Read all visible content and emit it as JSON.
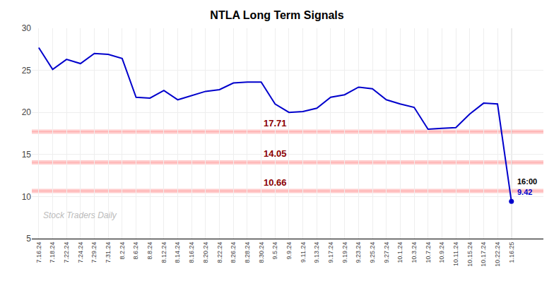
{
  "chart_data": {
    "type": "line",
    "title": "NTLA Long Term Signals",
    "categories": [
      "7.16.24",
      "7.18.24",
      "7.22.24",
      "7.24.24",
      "7.29.24",
      "7.31.24",
      "8.2.24",
      "8.6.24",
      "8.8.24",
      "8.12.24",
      "8.14.24",
      "8.16.24",
      "8.20.24",
      "8.22.24",
      "8.26.24",
      "8.28.24",
      "8.30.24",
      "9.5.24",
      "9.9.24",
      "9.11.24",
      "9.13.24",
      "9.17.24",
      "9.19.24",
      "9.23.24",
      "9.25.24",
      "9.27.24",
      "10.1.24",
      "10.3.24",
      "10.7.24",
      "10.9.24",
      "10.11.24",
      "10.15.24",
      "10.17.24",
      "10.22.24",
      "1.16.25"
    ],
    "values": [
      27.7,
      25.1,
      26.3,
      25.8,
      27.0,
      26.9,
      26.4,
      21.8,
      21.7,
      22.6,
      21.5,
      22.0,
      22.5,
      22.7,
      23.5,
      23.6,
      23.6,
      21.0,
      20.0,
      20.1,
      20.5,
      21.8,
      22.1,
      23.0,
      22.8,
      21.5,
      21.0,
      20.6,
      18.0,
      18.1,
      18.2,
      19.8,
      21.1,
      21.0,
      9.42
    ],
    "color": "#0000cc",
    "hlines": [
      {
        "y": 17.71,
        "label": "17.71",
        "color": "#8b0000"
      },
      {
        "y": 14.05,
        "label": "14.05",
        "color": "#8b0000"
      },
      {
        "y": 10.66,
        "label": "10.66",
        "color": "#8b0000"
      }
    ],
    "annotations": [
      {
        "text": "Stock Traders Daily"
      },
      {
        "text": "16:00"
      },
      {
        "text": "9.42",
        "color": "#0000cc"
      }
    ],
    "ylim": [
      5,
      30
    ],
    "yticks": [
      5,
      10,
      15,
      20,
      25,
      30
    ],
    "grid": true
  }
}
